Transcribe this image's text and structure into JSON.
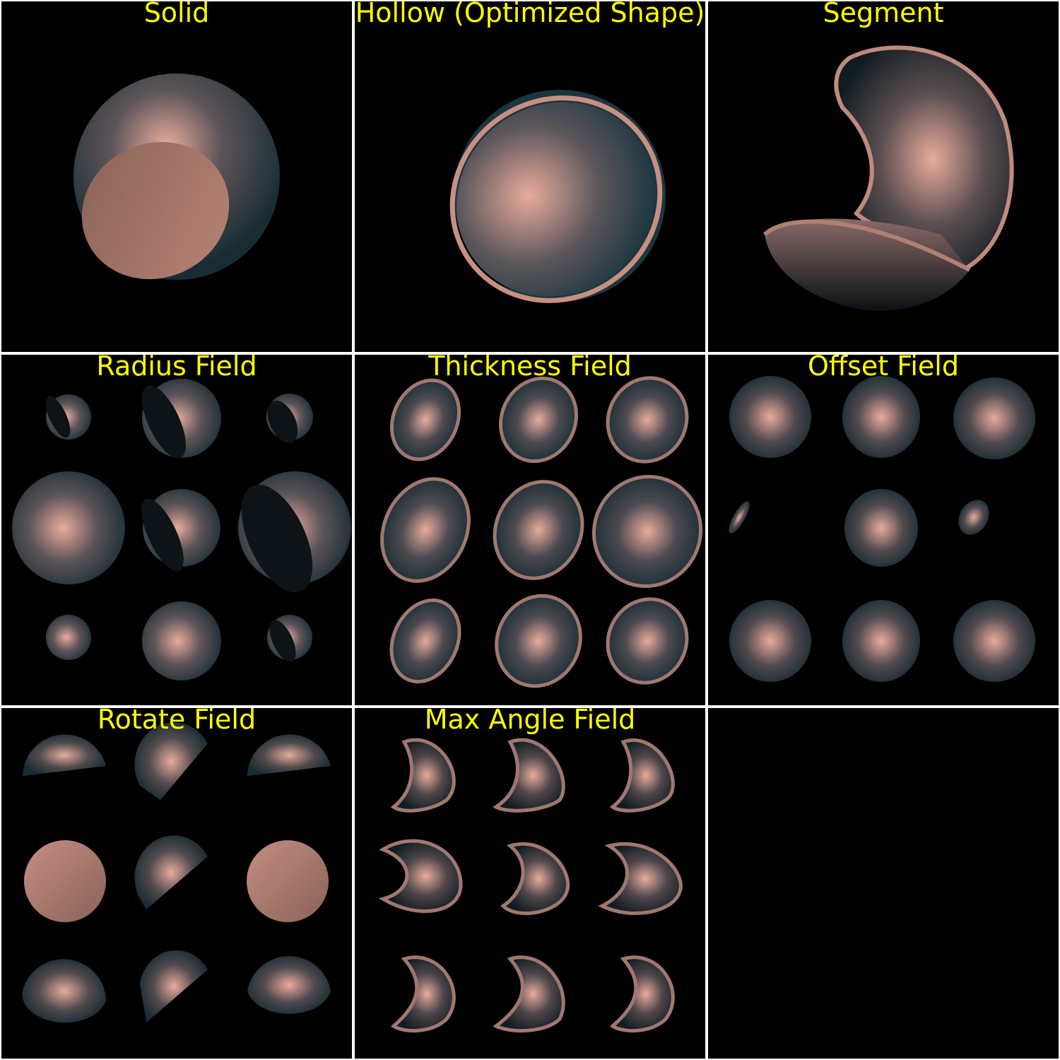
{
  "colors": {
    "background": "#000000",
    "separator": "#ffffff",
    "title": "#ffff00",
    "highlight": "#e8ab9c",
    "shadow": "#1c3640",
    "flat_cap": "#9a6e62"
  },
  "panels": [
    {
      "title": "Solid"
    },
    {
      "title": "Hollow (Optimized Shape)"
    },
    {
      "title": "Segment"
    },
    {
      "title": "Radius Field"
    },
    {
      "title": "Thickness Field"
    },
    {
      "title": "Offset Field"
    },
    {
      "title": "Rotate Field"
    },
    {
      "title": "Max Angle Field"
    },
    {
      "title": ""
    }
  ]
}
